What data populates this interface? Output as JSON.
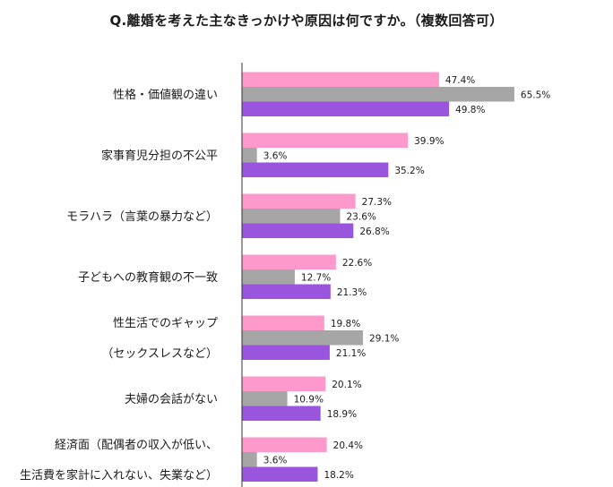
{
  "chart_data": {
    "type": "bar",
    "orientation": "horizontal",
    "title": "Q.離婚を考えた主なきっかけや原因は何ですか。（複数回答可）",
    "categories": [
      [
        "性格・価値観の違い"
      ],
      [
        "家事育児分担の不公平"
      ],
      [
        "モラハラ（言葉の暴力など）"
      ],
      [
        "子どもへの教育観の不一致"
      ],
      [
        "性生活でのギャップ",
        "（セックスレスなど）"
      ],
      [
        "夫婦の会話がない"
      ],
      [
        "経済面（配偶者の収入が低い、",
        "生活費を家計に入れない、失業など）"
      ]
    ],
    "series": [
      {
        "color": "#ff99cc",
        "values": [
          47.4,
          39.9,
          27.3,
          22.6,
          19.8,
          20.1,
          20.4
        ]
      },
      {
        "color": "#a6a6a6",
        "values": [
          65.5,
          3.6,
          23.6,
          12.7,
          29.1,
          10.9,
          3.6
        ]
      },
      {
        "color": "#9955dd",
        "values": [
          49.8,
          35.2,
          26.8,
          21.3,
          21.1,
          18.9,
          18.2
        ]
      }
    ],
    "value_suffix": "%",
    "xlim": [
      0,
      100
    ],
    "grid": false,
    "legend": "none"
  }
}
